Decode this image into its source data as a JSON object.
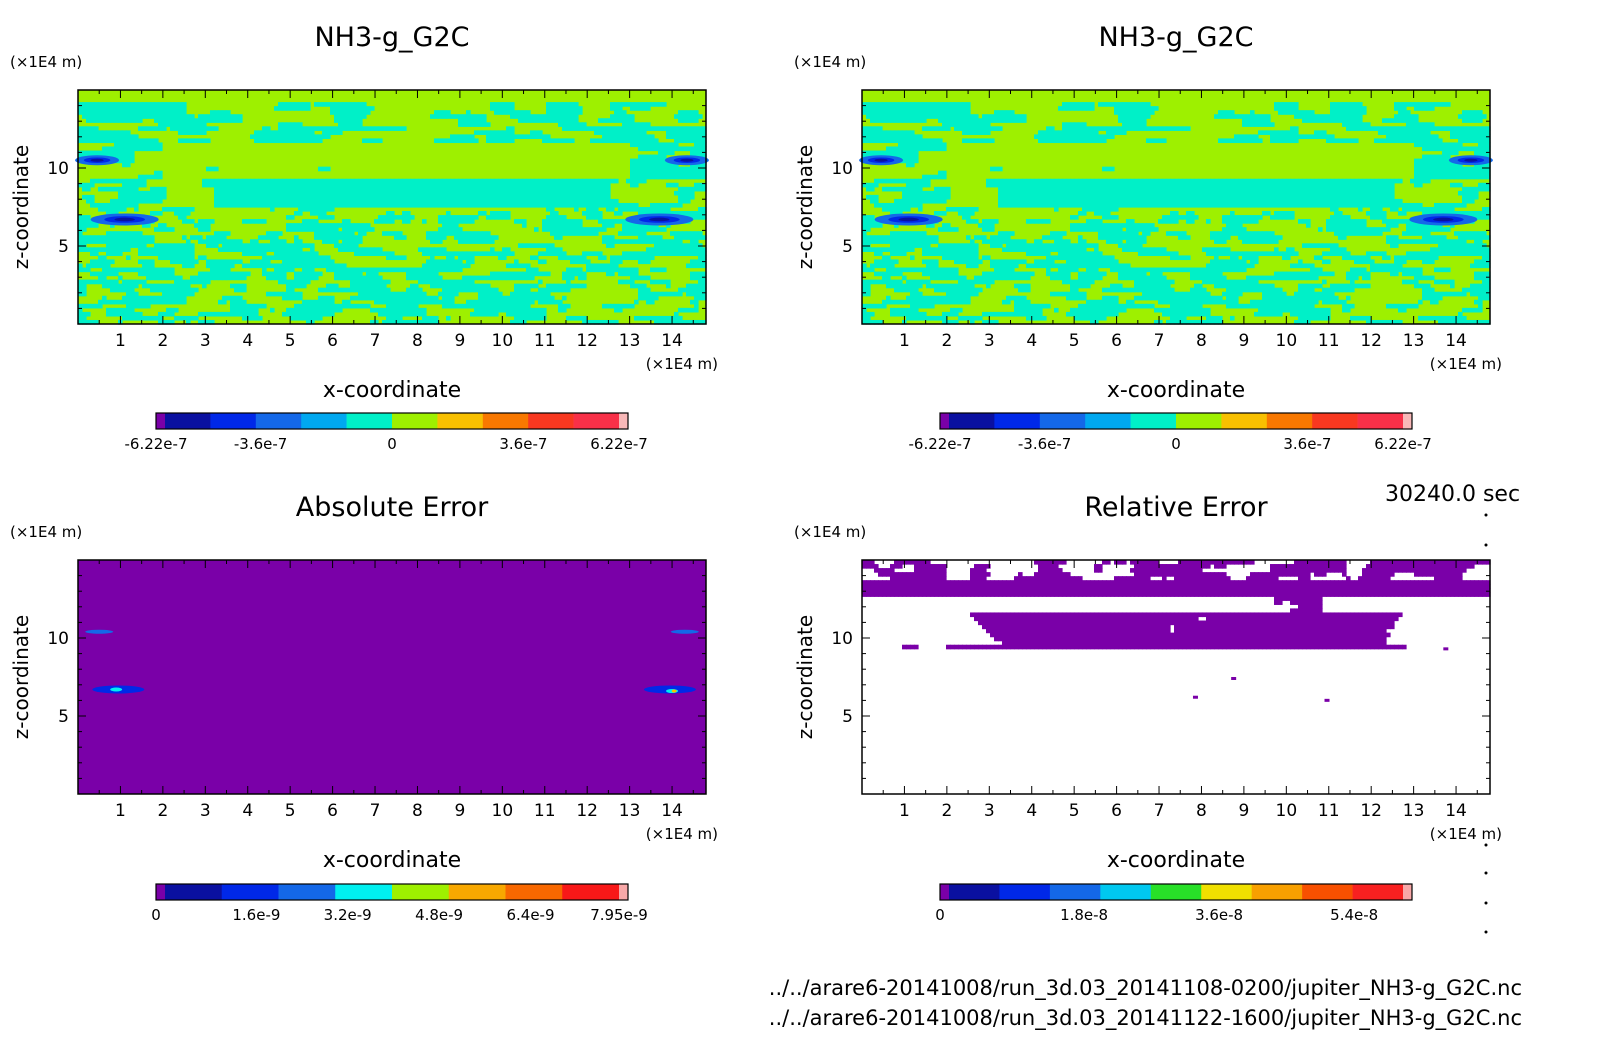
{
  "time_label": "30240.0 sec",
  "file_paths": [
    "../../arare6-20141008/run_3d.03_20141108-0200/jupiter_NH3-g_G2C.nc",
    "../../arare6-20141008/run_3d.03_20141122-1600/jupiter_NH3-g_G2C.nc"
  ],
  "chart_data": [
    {
      "type": "heatmap",
      "title": "NH3-g_G2C",
      "xlabel": "x-coordinate",
      "ylabel": "z-coordinate",
      "x_unit": "(×1E4 m)",
      "y_unit": "(×1E4 m)",
      "xlim": [
        0,
        14.8
      ],
      "ylim": [
        0,
        15
      ],
      "x_ticks": [
        1,
        2,
        3,
        4,
        5,
        6,
        7,
        8,
        9,
        10,
        11,
        12,
        13,
        14
      ],
      "y_ticks": [
        5,
        10
      ],
      "field": "mixed",
      "colorbar": {
        "colors": [
          "#7a00a8",
          "#0a10a0",
          "#0028e8",
          "#1468e8",
          "#00a8f0",
          "#00f0c8",
          "#9ef000",
          "#f8c000",
          "#f87800",
          "#f83820",
          "#f83048",
          "#f8b8b8"
        ],
        "tick_labels": [
          "-6.22e-7",
          "-3.6e-7",
          "0",
          "3.6e-7",
          "6.22e-7"
        ],
        "tick_values": [
          -6.22e-07,
          -3.6e-07,
          0,
          3.6e-07,
          6.22e-07
        ],
        "range": [
          -6.22e-07,
          6.22e-07
        ]
      }
    },
    {
      "type": "heatmap",
      "title": "NH3-g_G2C",
      "xlabel": "x-coordinate",
      "ylabel": "z-coordinate",
      "x_unit": "(×1E4 m)",
      "y_unit": "(×1E4 m)",
      "xlim": [
        0,
        14.8
      ],
      "ylim": [
        0,
        15
      ],
      "x_ticks": [
        1,
        2,
        3,
        4,
        5,
        6,
        7,
        8,
        9,
        10,
        11,
        12,
        13,
        14
      ],
      "y_ticks": [
        5,
        10
      ],
      "field": "mixed",
      "colorbar": {
        "colors": [
          "#7a00a8",
          "#0a10a0",
          "#0028e8",
          "#1468e8",
          "#00a8f0",
          "#00f0c8",
          "#9ef000",
          "#f8c000",
          "#f87800",
          "#f83820",
          "#f83048",
          "#f8b8b8"
        ],
        "tick_labels": [
          "-6.22e-7",
          "-3.6e-7",
          "0",
          "3.6e-7",
          "6.22e-7"
        ],
        "tick_values": [
          -6.22e-07,
          -3.6e-07,
          0,
          3.6e-07,
          6.22e-07
        ],
        "range": [
          -6.22e-07,
          6.22e-07
        ]
      }
    },
    {
      "type": "heatmap",
      "title": "Absolute Error",
      "xlabel": "x-coordinate",
      "ylabel": "z-coordinate",
      "x_unit": "(×1E4 m)",
      "y_unit": "(×1E4 m)",
      "xlim": [
        0,
        14.8
      ],
      "ylim": [
        0,
        15
      ],
      "x_ticks": [
        1,
        2,
        3,
        4,
        5,
        6,
        7,
        8,
        9,
        10,
        11,
        12,
        13,
        14
      ],
      "y_ticks": [
        5,
        10
      ],
      "field": "uniform",
      "colorbar": {
        "colors": [
          "#7a00a8",
          "#0a10a0",
          "#0028e8",
          "#1468e8",
          "#00f0f0",
          "#9ef000",
          "#f8a800",
          "#f86800",
          "#f81818",
          "#f8a8a8"
        ],
        "tick_labels": [
          "0",
          "1.6e-9",
          "3.2e-9",
          "4.8e-9",
          "6.4e-9",
          "7.95e-9"
        ],
        "tick_values": [
          0,
          1.6e-09,
          3.2e-09,
          4.8e-09,
          6.4e-09,
          7.95e-09
        ],
        "range": [
          0,
          7.95e-09
        ]
      }
    },
    {
      "type": "heatmap",
      "title": "Relative Error",
      "xlabel": "x-coordinate",
      "ylabel": "z-coordinate",
      "x_unit": "(×1E4 m)",
      "y_unit": "(×1E4 m)",
      "xlim": [
        0,
        14.8
      ],
      "ylim": [
        0,
        15
      ],
      "x_ticks": [
        1,
        2,
        3,
        4,
        5,
        6,
        7,
        8,
        9,
        10,
        11,
        12,
        13,
        14
      ],
      "y_ticks": [
        5,
        10
      ],
      "field": "sparse",
      "colorbar": {
        "colors": [
          "#7a00a8",
          "#0a10a0",
          "#0028e8",
          "#1468e8",
          "#00c8f0",
          "#28e028",
          "#f0e000",
          "#f8a000",
          "#f85000",
          "#f82020",
          "#f8a8a8"
        ],
        "tick_labels": [
          "0",
          "1.8e-8",
          "3.6e-8",
          "5.4e-8"
        ],
        "tick_values": [
          0,
          1.8e-08,
          3.6e-08,
          5.4e-08
        ],
        "range": [
          0,
          6.05e-08
        ]
      }
    }
  ]
}
